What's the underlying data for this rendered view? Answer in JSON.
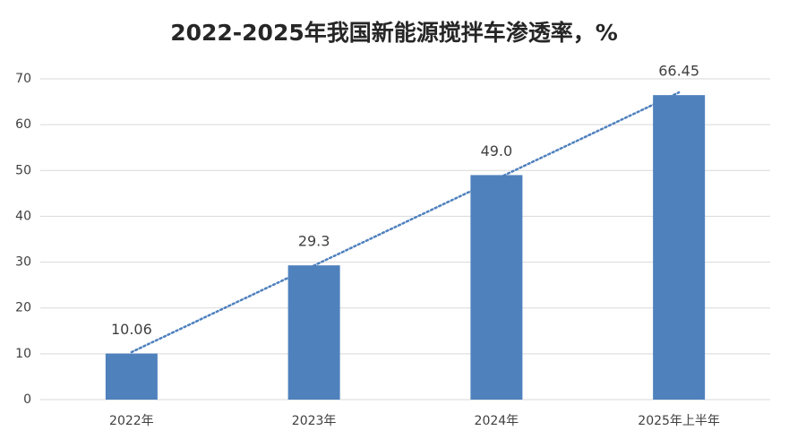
{
  "chart_data": {
    "type": "bar",
    "title": "2022-2025年我国新能源搅拌车渗透率，%",
    "categories": [
      "2022年",
      "2023年",
      "2024年",
      "2025年上半年"
    ],
    "values": [
      10.06,
      29.3,
      49,
      66.45
    ],
    "value_labels": [
      "10.06",
      "29.3",
      "49.0",
      "66.45"
    ],
    "color": "#4f81bd",
    "ylim": [
      0,
      70
    ],
    "yticks": [
      0,
      10,
      20,
      30,
      40,
      50,
      60,
      70
    ],
    "grid": true,
    "trendline": "linear",
    "trendline_color": "#4f81bd"
  }
}
